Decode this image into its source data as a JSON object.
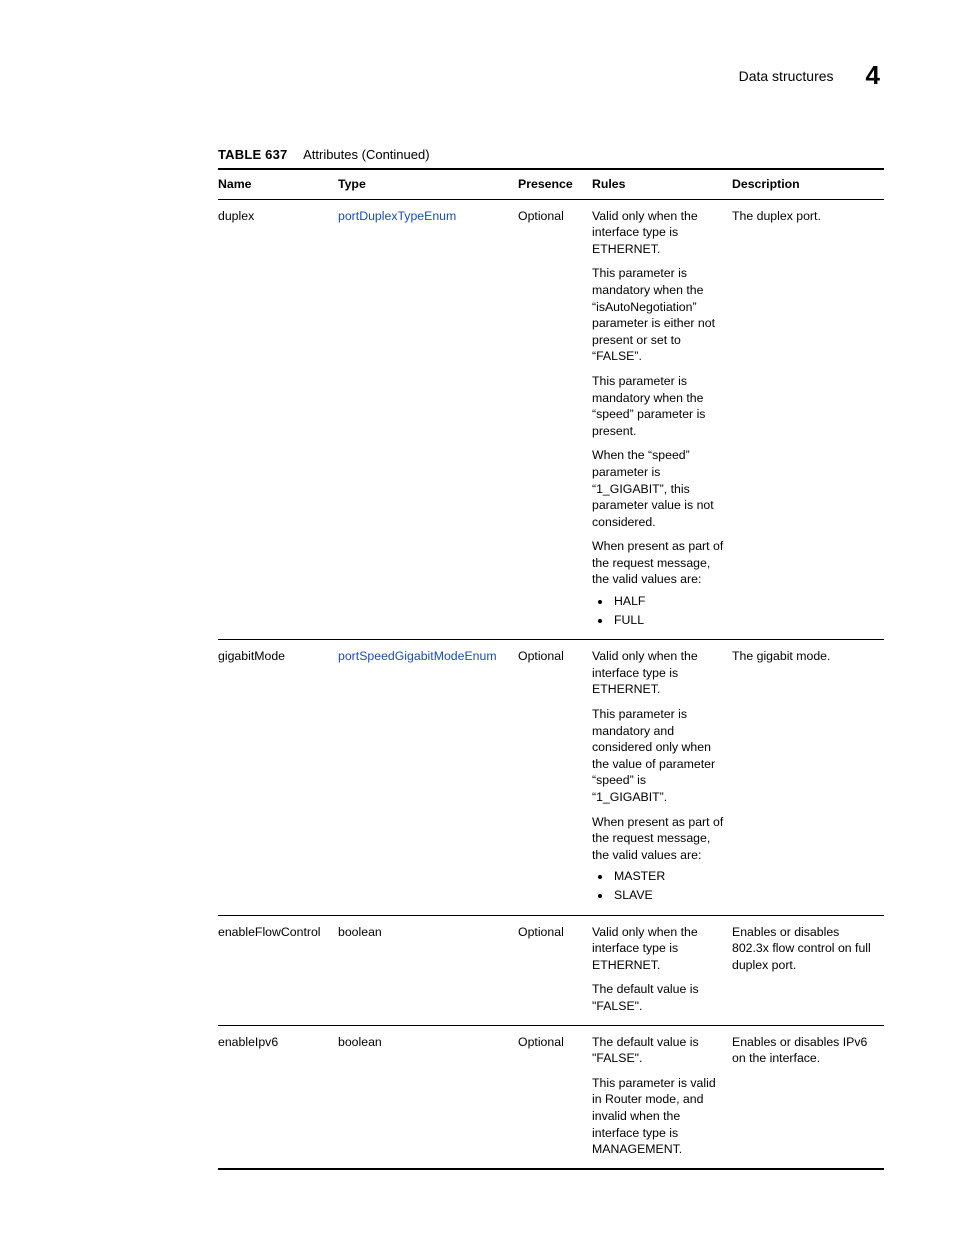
{
  "header": {
    "section": "Data structures",
    "chapter": "4"
  },
  "caption": {
    "label": "TABLE 637",
    "title": "Attributes  (Continued)"
  },
  "columns": {
    "name": "Name",
    "type": "Type",
    "presence": "Presence",
    "rules": "Rules",
    "description": "Description"
  },
  "rows": [
    {
      "name": "duplex",
      "type": "portDuplexTypeEnum",
      "type_is_link": true,
      "presence": "Optional",
      "rules": {
        "paras": [
          "Valid only when the interface type is ETHERNET.",
          "This parameter is mandatory when the “isAutoNegotiation” parameter is either not present or set to “FALSE”.",
          "This parameter is mandatory when the “speed” parameter is present.",
          "When the “speed” parameter is “1_GIGABIT”, this parameter value is not considered.",
          "When present as part of the request message, the valid values are:"
        ],
        "bullets": [
          "HALF",
          "FULL"
        ]
      },
      "description": "The duplex port."
    },
    {
      "name": "gigabitMode",
      "type": "portSpeedGigabitModeEnum",
      "type_is_link": true,
      "presence": "Optional",
      "rules": {
        "paras": [
          "Valid only when the interface type is ETHERNET.",
          "This parameter is mandatory and considered only when the value of parameter “speed” is “1_GIGABIT”.",
          "When present as part of the request message, the  valid values are:"
        ],
        "bullets": [
          "MASTER",
          "SLAVE"
        ]
      },
      "description": "The gigabit mode."
    },
    {
      "name": "enableFlowControl",
      "type": "boolean",
      "type_is_link": false,
      "presence": "Optional",
      "rules": {
        "paras": [
          "Valid only when the interface type is ETHERNET.",
          "The default value is \"FALSE\"."
        ],
        "bullets": []
      },
      "description": "Enables or disables 802.3x flow control on full duplex port."
    },
    {
      "name": "enableIpv6",
      "type": "boolean",
      "type_is_link": false,
      "presence": "Optional",
      "rules": {
        "paras": [
          "The default value is \"FALSE\".",
          "This parameter is valid in Router mode, and invalid when the interface type is MANAGEMENT."
        ],
        "bullets": []
      },
      "description": "Enables or disables IPv6 on the interface."
    }
  ]
}
